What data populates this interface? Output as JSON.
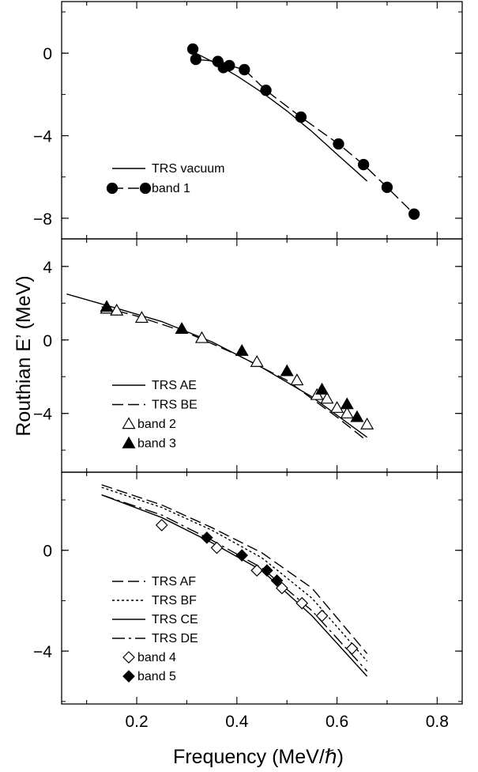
{
  "figure": {
    "xlabel": "Frequency (MeV/ℏ)",
    "ylabel": "Routhian E’ (MeV)",
    "x_ticks": [
      "0.2",
      "0.4",
      "0.6",
      "0.8"
    ]
  },
  "chart_data": [
    {
      "type": "line",
      "panel": "top",
      "xlim": [
        0.05,
        0.85
      ],
      "ylim": [
        -9,
        2.5
      ],
      "y_ticks": [
        0,
        -4,
        -8
      ],
      "y_tick_labels": [
        "0",
        "−4",
        "−8"
      ],
      "series": [
        {
          "name": "TRS vacuum",
          "style": "solid",
          "x": [
            0.31,
            0.35,
            0.4,
            0.45,
            0.5,
            0.55,
            0.6,
            0.66
          ],
          "y": [
            0.1,
            -0.4,
            -1.1,
            -1.9,
            -2.8,
            -3.8,
            -4.9,
            -6.2
          ]
        },
        {
          "name": "band 1",
          "style": "dashed",
          "marker": "filled-circle",
          "x": [
            0.312,
            0.318,
            0.362,
            0.373,
            0.385,
            0.415,
            0.458,
            0.528,
            0.603,
            0.653,
            0.7,
            0.754
          ],
          "y": [
            0.2,
            -0.3,
            -0.4,
            -0.7,
            -0.6,
            -0.8,
            -1.8,
            -3.1,
            -4.4,
            -5.4,
            -6.5,
            -7.8
          ]
        }
      ]
    },
    {
      "type": "line",
      "panel": "middle",
      "xlim": [
        0.05,
        0.85
      ],
      "ylim": [
        -7.2,
        5.5
      ],
      "y_ticks": [
        4,
        0,
        -4
      ],
      "y_tick_labels": [
        "4",
        "0",
        "−4"
      ],
      "series": [
        {
          "name": "TRS AE",
          "style": "solid",
          "x": [
            0.06,
            0.15,
            0.25,
            0.35,
            0.45,
            0.55,
            0.66
          ],
          "y": [
            2.5,
            1.8,
            1.0,
            -0.1,
            -1.5,
            -3.1,
            -5.3
          ]
        },
        {
          "name": "TRS BE",
          "style": "dashed",
          "x": [
            0.13,
            0.2,
            0.3,
            0.4,
            0.5,
            0.6,
            0.66
          ],
          "y": [
            1.8,
            1.3,
            0.4,
            -0.8,
            -2.2,
            -4.2,
            -5.5
          ]
        },
        {
          "name": "band 2",
          "marker": "open-triangle",
          "x": [
            0.14,
            0.16,
            0.21,
            0.33,
            0.44,
            0.52,
            0.56,
            0.58,
            0.6,
            0.62,
            0.66
          ],
          "y": [
            1.7,
            1.6,
            1.2,
            0.1,
            -1.2,
            -2.2,
            -3.0,
            -3.2,
            -3.7,
            -4.0,
            -4.6
          ]
        },
        {
          "name": "band 3",
          "marker": "filled-triangle",
          "x": [
            0.14,
            0.29,
            0.41,
            0.5,
            0.57,
            0.62,
            0.64
          ],
          "y": [
            1.8,
            0.6,
            -0.6,
            -1.7,
            -2.7,
            -3.5,
            -4.2
          ]
        }
      ]
    },
    {
      "type": "line",
      "panel": "bottom",
      "xlim": [
        0.05,
        0.85
      ],
      "ylim": [
        -6.1,
        3.1
      ],
      "y_ticks": [
        0,
        -4
      ],
      "y_tick_labels": [
        "0",
        "−4"
      ],
      "series": [
        {
          "name": "TRS AF",
          "style": "dashed",
          "x": [
            0.13,
            0.25,
            0.35,
            0.45,
            0.55,
            0.66
          ],
          "y": [
            2.6,
            1.8,
            0.9,
            -0.1,
            -1.5,
            -4.1
          ]
        },
        {
          "name": "TRS BF",
          "style": "dotted",
          "x": [
            0.13,
            0.25,
            0.35,
            0.45,
            0.55,
            0.66
          ],
          "y": [
            2.5,
            1.7,
            0.8,
            -0.3,
            -1.9,
            -4.4
          ]
        },
        {
          "name": "TRS CE",
          "style": "solid",
          "x": [
            0.13,
            0.25,
            0.35,
            0.45,
            0.55,
            0.66
          ],
          "y": [
            2.2,
            1.3,
            0.3,
            -0.8,
            -2.6,
            -5.0
          ]
        },
        {
          "name": "TRS DE",
          "style": "dash-dot",
          "x": [
            0.13,
            0.25,
            0.35,
            0.45,
            0.55,
            0.66
          ],
          "y": [
            2.2,
            1.4,
            0.4,
            -0.7,
            -2.4,
            -4.8
          ]
        },
        {
          "name": "band 4",
          "marker": "open-diamond",
          "x": [
            0.25,
            0.36,
            0.44,
            0.49,
            0.53,
            0.57,
            0.63
          ],
          "y": [
            1.0,
            0.1,
            -0.8,
            -1.5,
            -2.1,
            -2.6,
            -3.9
          ]
        },
        {
          "name": "band 5",
          "marker": "filled-diamond",
          "x": [
            0.34,
            0.41,
            0.46,
            0.48
          ],
          "y": [
            0.5,
            -0.2,
            -0.8,
            -1.2
          ]
        }
      ]
    }
  ]
}
